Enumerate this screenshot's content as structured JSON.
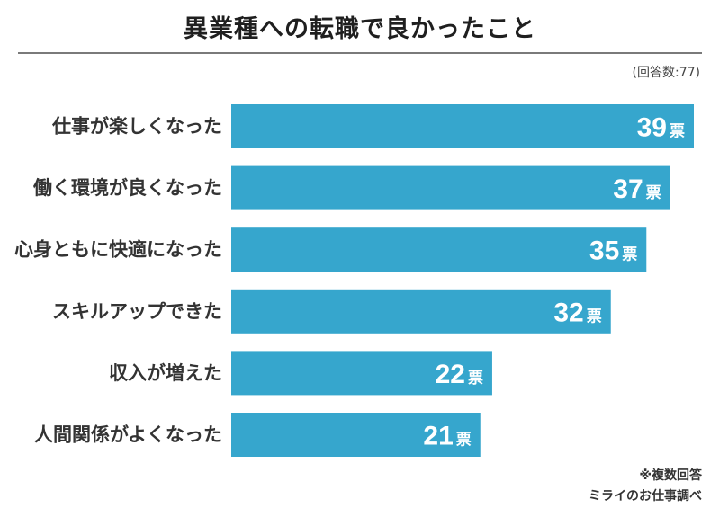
{
  "header": {
    "title": "異業種への転職で良かったこと",
    "respondents": "(回答数:77)"
  },
  "footer": {
    "note": "※複数回答",
    "source": "ミライのお仕事調べ"
  },
  "colors": {
    "bar": "#36a6cd",
    "bar_text": "#ffffff",
    "label_text": "#333333",
    "rule": "#7a7a7a"
  },
  "chart_data": {
    "type": "bar",
    "orientation": "horizontal",
    "title": "異業種への転職で良かったこと",
    "categories": [
      "仕事が楽しくなった",
      "働く環境が良くなった",
      "心身ともに快適になった",
      "スキルアップできた",
      "収入が増えた",
      "人間関係がよくなった"
    ],
    "values": [
      39,
      37,
      35,
      32,
      22,
      21
    ],
    "unit": "票",
    "xlim": [
      0,
      39
    ],
    "grid": false,
    "legend": "none"
  }
}
